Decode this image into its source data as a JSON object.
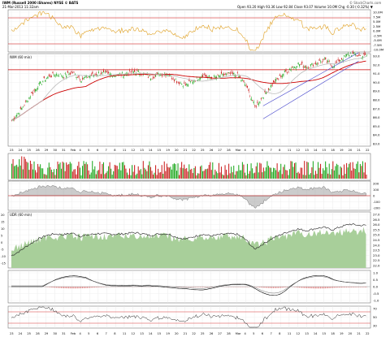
{
  "header": {
    "ticker_line": "IWM (Russell 2000 iShares) NYSE © BATS",
    "date_line": "21-Mar-2013 11:32am",
    "quote_line": "Open 93.20  High 93.36  Low 92.84  Close 93.07  Volume 10.0M  Chg -0.30 (-0.32%) ▼",
    "brand": "© StockCharts.com"
  },
  "panel_labels": {
    "price": "IWM (60 min)",
    "udr": "UDR (60 min)"
  },
  "axis_labels": {
    "top": [
      "10.0M",
      "7.5M",
      "5.0M",
      "2.5M",
      "0.0M",
      "-2.5M",
      "-5.0M",
      "-7.5M",
      "-10.0M"
    ],
    "price": [
      "93.0",
      "92.0",
      "91.0",
      "90.0",
      "89.0",
      "88.0",
      "87.0",
      "86.0",
      "85.0",
      "84.0",
      "83.0"
    ],
    "udr": [
      "200",
      "100",
      "0",
      "-100",
      "-200"
    ],
    "udr_right": [
      "27.0",
      "26.5",
      "26.0",
      "25.5",
      "25.0",
      "24.5",
      "24.0",
      "23.5",
      "23.0",
      "22.5",
      "22.0"
    ],
    "udr_left": [
      "20",
      "15",
      "10",
      "5",
      "0",
      "-5",
      "-10",
      "-15"
    ],
    "macd": [
      "1.0",
      "0.5",
      "0.0",
      "-0.5",
      "-1.0"
    ],
    "rsi": [
      "70",
      "50",
      "30"
    ],
    "vol": [
      "80",
      "60",
      "40"
    ]
  },
  "x_labels": [
    "23",
    "24",
    "25",
    "28",
    "29",
    "30",
    "31",
    "Feb",
    "4",
    "5",
    "6",
    "7",
    "8",
    "11",
    "12",
    "13",
    "14",
    "15",
    "19",
    "20",
    "21",
    "22",
    "25",
    "26",
    "27",
    "28",
    "Mar",
    "4",
    "5",
    "6",
    "7",
    "8",
    "11",
    "12",
    "13",
    "14",
    "15",
    "18",
    "19",
    "20",
    "21",
    "22"
  ],
  "colors": {
    "up": "#22aa22",
    "down": "#cc2222",
    "ma1": "#cc0000",
    "ma2": "#bbbbbb",
    "osc": "#e0a020",
    "channel": "#4444cc",
    "area_green": "#a8cf9a",
    "area_gray": "#999999"
  },
  "chart_data": {
    "type": "line",
    "title": "IWM (Russell 2000 iShares) NYSE",
    "series_note": "hourly price approximation",
    "x": [
      "23",
      "24",
      "25",
      "28",
      "29",
      "30",
      "31",
      "Feb",
      "4",
      "5",
      "6",
      "7",
      "8",
      "11",
      "12",
      "13",
      "14",
      "15",
      "19",
      "20",
      "21",
      "22",
      "25",
      "26",
      "27",
      "28",
      "Mar",
      "4",
      "5",
      "6",
      "7",
      "8",
      "11",
      "12",
      "13",
      "14",
      "15",
      "18",
      "19",
      "20",
      "21",
      "22"
    ],
    "price_close": [
      85.6,
      86.8,
      88.3,
      89.6,
      90.6,
      91.0,
      90.8,
      91.2,
      90.4,
      90.8,
      91.1,
      91.0,
      90.9,
      91.0,
      91.3,
      91.1,
      90.6,
      91.0,
      91.0,
      90.2,
      89.7,
      90.3,
      90.9,
      90.5,
      90.8,
      91.0,
      90.9,
      89.6,
      87.2,
      88.5,
      89.8,
      90.8,
      91.6,
      92.2,
      91.8,
      92.3,
      92.6,
      92.0,
      92.8,
      93.4,
      93.1,
      93.1
    ],
    "ylim": [
      83.0,
      93.0
    ]
  }
}
